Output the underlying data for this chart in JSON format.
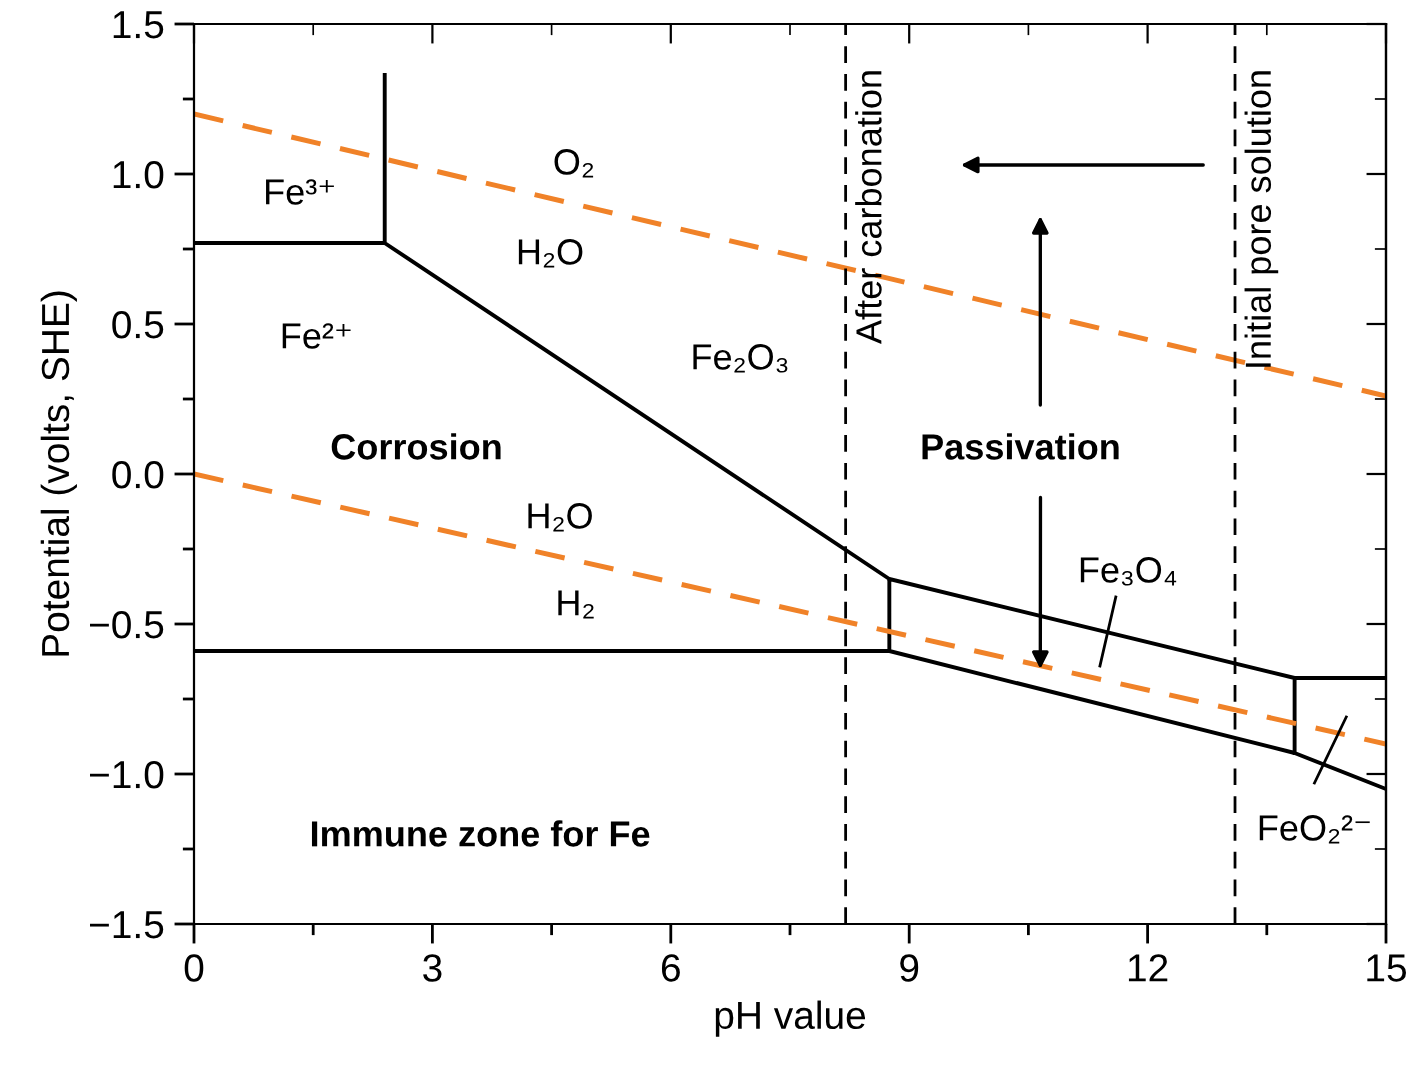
{
  "chart_data": {
    "type": "line",
    "xlabel": "pH value",
    "ylabel": "Potential (volts, SHE)",
    "xlim": [
      0,
      15
    ],
    "ylim": [
      -1.5,
      1.5
    ],
    "xticks": [
      0,
      3,
      6,
      9,
      12,
      15
    ],
    "yticks": [
      {
        "value": -1.5,
        "label": "−1.5"
      },
      {
        "value": -1.0,
        "label": "−1.0"
      },
      {
        "value": -0.5,
        "label": "−0.5"
      },
      {
        "value": 0,
        "label": "0.0"
      },
      {
        "value": 0.5,
        "label": "0.5"
      },
      {
        "value": 1.0,
        "label": "1.0"
      },
      {
        "value": 1.5,
        "label": "1.5"
      }
    ],
    "grid": false,
    "legend": false,
    "marker": "none",
    "series": [
      {
        "color": "#000000",
        "line_style": "solid",
        "x": [
          0,
          2.4,
          2.4,
          null,
          2.4,
          8.75,
          8.75,
          0,
          null,
          8.75,
          13.85,
          15,
          null,
          8.75,
          13.85,
          15,
          null,
          13.85,
          13.85
        ],
        "values": [
          0.77,
          0.77,
          1.33,
          null,
          0.77,
          -0.35,
          -0.59,
          -0.59,
          null,
          -0.35,
          -0.68,
          -0.68,
          null,
          -0.59,
          -0.93,
          -1.05,
          null,
          -0.93,
          -0.68
        ]
      },
      {
        "color": "#f08228",
        "line_style": "dashed",
        "x": [
          0,
          15
        ],
        "values": [
          1.2,
          0.26
        ]
      },
      {
        "color": "#f08228",
        "line_style": "dashed",
        "x": [
          0,
          15
        ],
        "values": [
          0,
          -0.9
        ]
      }
    ],
    "ref_lines": [
      {
        "axis": "x",
        "value": 8.2,
        "label": "After carbonation",
        "color": "#000000",
        "line_style": "dashed"
      },
      {
        "axis": "x",
        "value": 13.1,
        "label": "Initial pore solution",
        "color": "#000000",
        "line_style": "dashed"
      }
    ],
    "annotations": [
      "Fe³⁺",
      "Fe²⁺",
      "O₂",
      "H₂O",
      "Fe₂O₃",
      "Corrosion",
      "H₂O",
      "H₂",
      {
        "text": "Passivation",
        "x": 10.65,
        "y": -0.65
      },
      "Immune zone for Fe",
      "Fe₃O₄",
      "FeO₂²⁻"
    ]
  }
}
